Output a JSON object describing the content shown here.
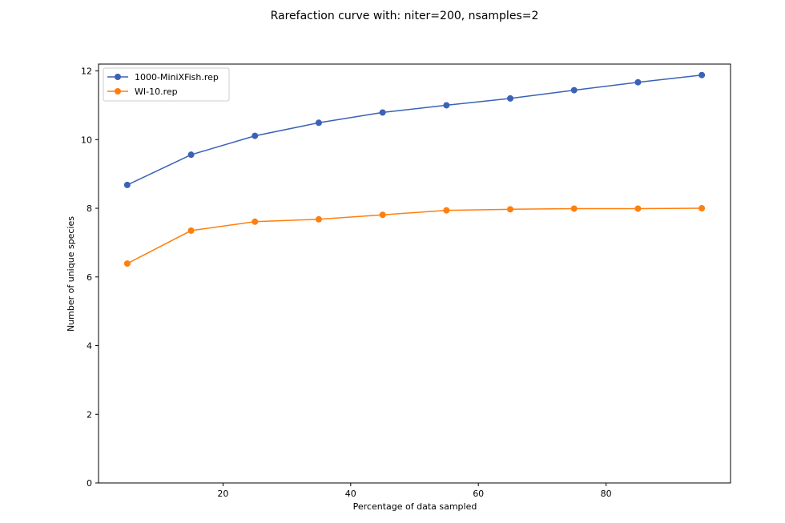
{
  "chart_data": {
    "type": "line",
    "title": "Rarefaction curve with: niter=200, nsamples=2",
    "xlabel": "Percentage of data sampled",
    "ylabel": "Number of unique species",
    "xlim": [
      0.5,
      99.5
    ],
    "ylim": [
      0,
      12.2
    ],
    "xticks": [
      20,
      40,
      60,
      80
    ],
    "yticks": [
      0,
      2,
      4,
      6,
      8,
      10,
      12
    ],
    "grid": false,
    "legend_position": "top-left",
    "x": [
      5,
      15,
      25,
      35,
      45,
      55,
      65,
      75,
      85,
      95
    ],
    "series": [
      {
        "name": "1000-MiniXFish.rep",
        "color": "#3a62b6",
        "values": [
          8.68,
          9.56,
          10.11,
          10.49,
          10.79,
          11.0,
          11.2,
          11.44,
          11.67,
          11.88
        ]
      },
      {
        "name": "WI-10.rep",
        "color": "#ff7f0e",
        "values": [
          6.39,
          7.35,
          7.61,
          7.68,
          7.81,
          7.94,
          7.97,
          7.99,
          7.99,
          8.0
        ]
      }
    ]
  }
}
